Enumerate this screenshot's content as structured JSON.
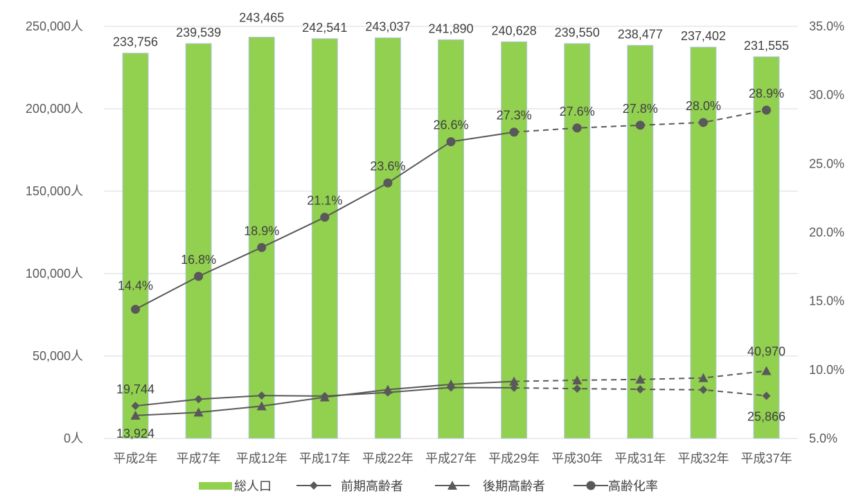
{
  "chart_data": {
    "type": "bar+line",
    "categories": [
      "平成2年",
      "平成7年",
      "平成12年",
      "平成17年",
      "平成22年",
      "平成27年",
      "平成29年",
      "平成30年",
      "平成31年",
      "平成32年",
      "平成37年"
    ],
    "y_left": {
      "ylim": [
        0,
        250000
      ],
      "ticks": [
        0,
        50000,
        100000,
        150000,
        200000,
        250000
      ],
      "tick_labels": [
        "0人",
        "50,000人",
        "100,000人",
        "150,000人",
        "200,000人",
        "250,000人"
      ]
    },
    "y_right": {
      "ylim": [
        5.0,
        35.0
      ],
      "ticks": [
        5,
        10,
        15,
        20,
        25,
        30,
        35
      ],
      "tick_labels": [
        "5.0%",
        "10.0%",
        "15.0%",
        "20.0%",
        "25.0%",
        "30.0%",
        "35.0%"
      ]
    },
    "series": [
      {
        "name": "総人口",
        "kind": "bar",
        "axis": "left",
        "color": "#92D050",
        "values": [
          233756,
          239539,
          243465,
          242541,
          243037,
          241890,
          240628,
          239550,
          238477,
          237402,
          231555
        ],
        "labels": [
          "233,756",
          "239,539",
          "243,465",
          "242,541",
          "243,037",
          "241,890",
          "240,628",
          "239,550",
          "238,477",
          "237,402",
          "231,555"
        ]
      },
      {
        "name": "前期高齢者",
        "kind": "line",
        "marker": "diamond",
        "axis": "left",
        "color": "#595959",
        "values": [
          19744,
          23800,
          26000,
          25700,
          27900,
          30900,
          30700,
          30200,
          29800,
          29500,
          25866
        ],
        "labels": [
          "19,744",
          "",
          "",
          "",
          "",
          "",
          "",
          "",
          "",
          "",
          "25,866"
        ]
      },
      {
        "name": "後期高齢者",
        "kind": "line",
        "marker": "triangle",
        "axis": "left",
        "color": "#595959",
        "values": [
          13924,
          15800,
          19600,
          25000,
          29600,
          32800,
          34600,
          35300,
          35800,
          36700,
          40970
        ],
        "labels": [
          "13,924",
          "",
          "",
          "",
          "",
          "",
          "",
          "",
          "",
          "",
          "40,970"
        ]
      },
      {
        "name": "高齢化率",
        "kind": "line",
        "marker": "circle",
        "axis": "right",
        "color": "#595959",
        "values": [
          14.4,
          16.8,
          18.9,
          21.1,
          23.6,
          26.6,
          27.3,
          27.6,
          27.8,
          28.0,
          28.9
        ],
        "labels": [
          "14.4%",
          "16.8%",
          "18.9%",
          "21.1%",
          "23.6%",
          "26.6%",
          "27.3%",
          "27.6%",
          "27.8%",
          "28.0%",
          "28.9%"
        ]
      }
    ],
    "projection_from_index": 6,
    "legend": {
      "placement": "bottom",
      "items": [
        "総人口",
        "前期高齢者",
        "後期高齢者",
        "高齢化率"
      ]
    },
    "grid": true
  }
}
